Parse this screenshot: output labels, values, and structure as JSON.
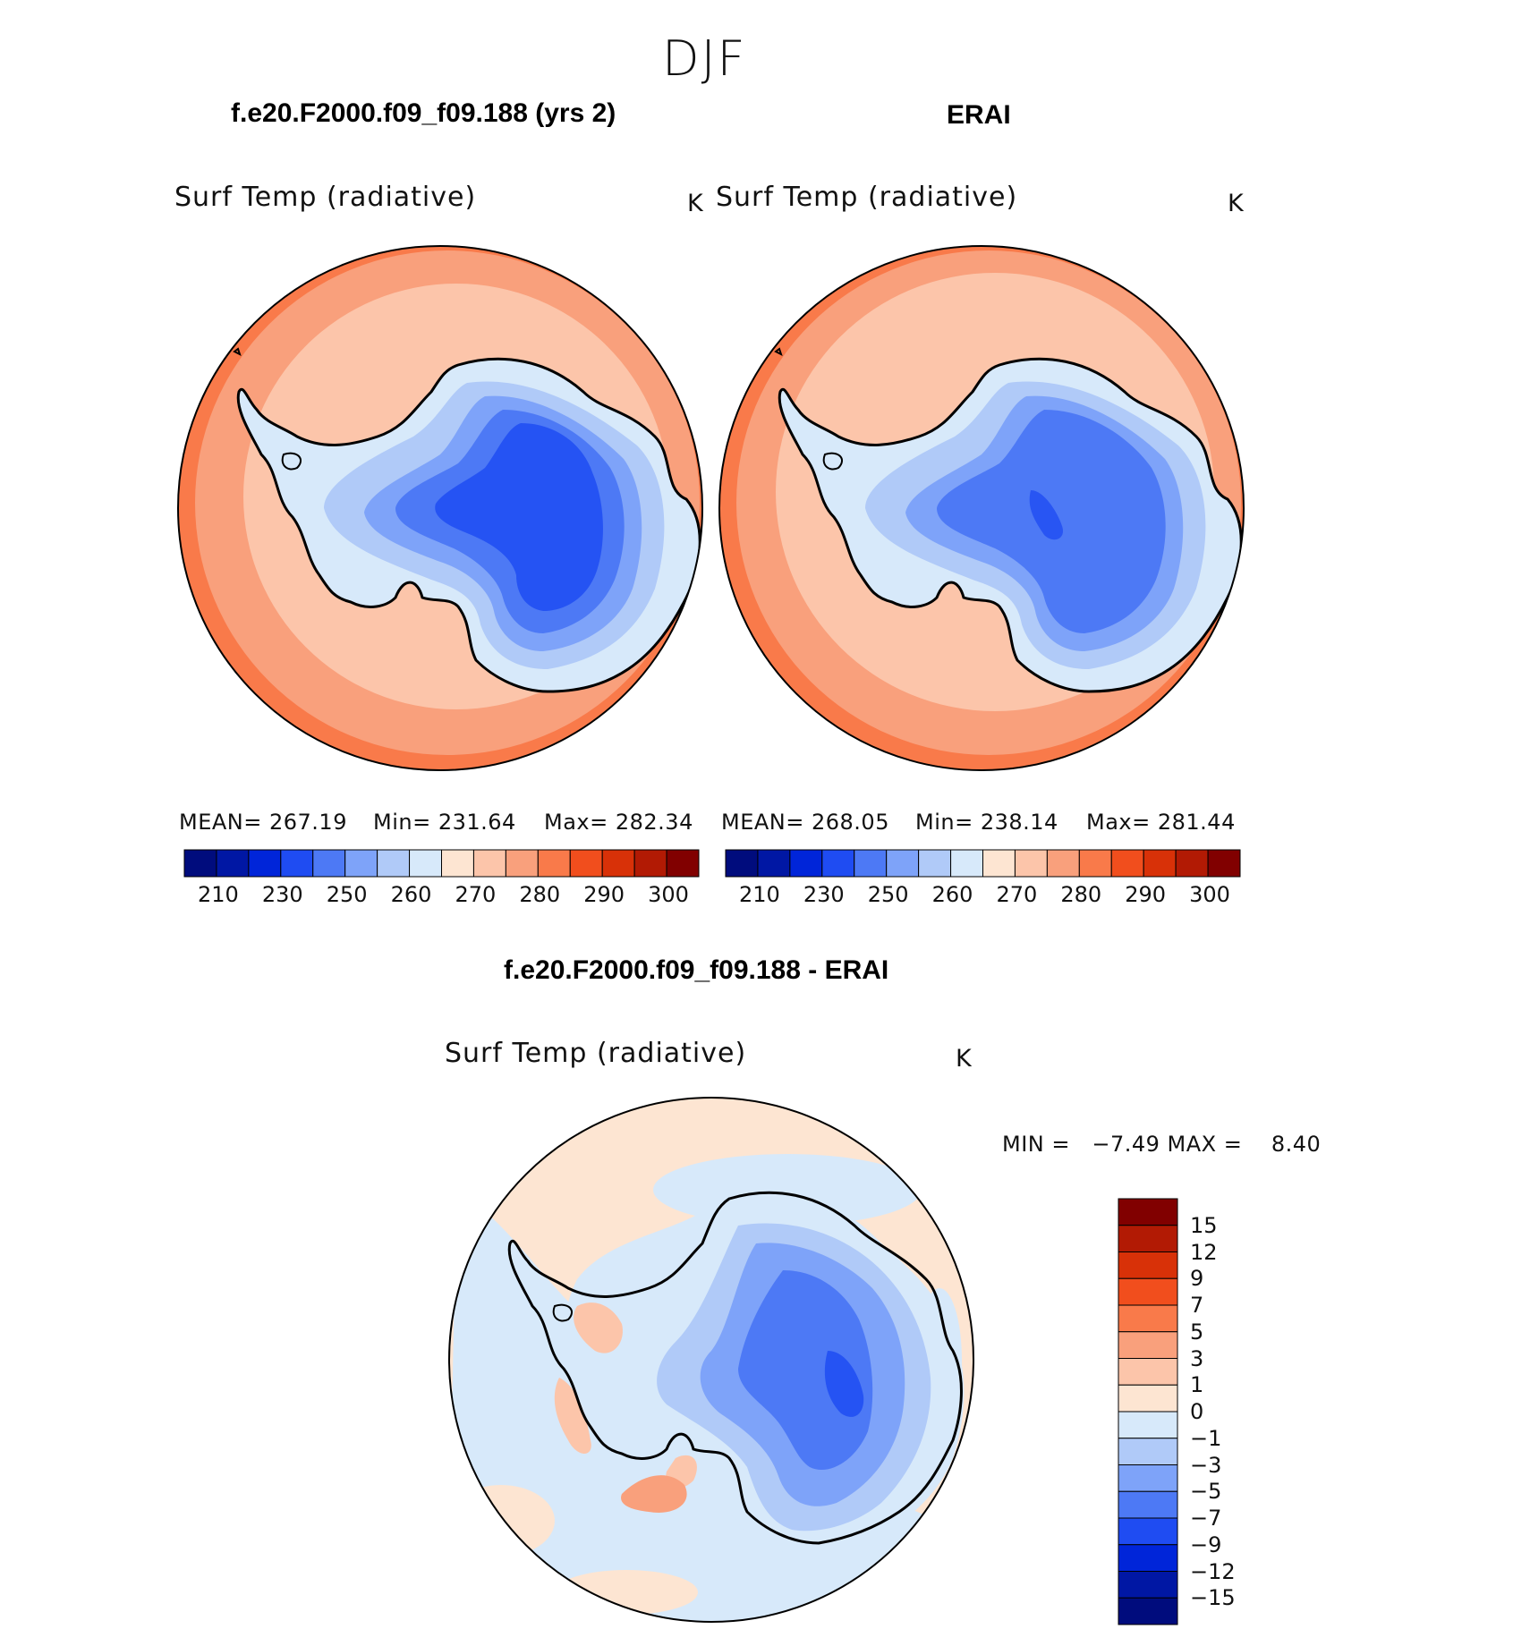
{
  "figure": {
    "season": "DJF",
    "model_title": "f.e20.F2000.f09_f09.188 (yrs 2)",
    "obs_title": "ERAI",
    "diff_title": "f.e20.F2000.f09_f09.188 - ERAI"
  },
  "panels": {
    "model": {
      "variable": "Surf Temp (radiative)",
      "units": "K",
      "mean_text": "MEAN= 267.19",
      "min_text": "Min= 231.64",
      "max_text": "Max= 282.34"
    },
    "obs": {
      "variable": "Surf Temp (radiative)",
      "units": "K",
      "mean_text": "MEAN= 268.05",
      "min_text": "Min= 238.14",
      "max_text": "Max= 281.44"
    },
    "diff": {
      "variable": "Surf Temp (radiative)",
      "units": "K",
      "minmax_text": "MIN =   −7.49 MAX =    8.40"
    }
  },
  "colorbar_abs": {
    "tick_labels": [
      "210",
      "230",
      "250",
      "260",
      "270",
      "280",
      "290",
      "300"
    ],
    "colors": [
      "#000c7d",
      "#0017a4",
      "#0025d9",
      "#1f4cf2",
      "#4d79f5",
      "#7ea3f9",
      "#b0caf8",
      "#d7e9fa",
      "#fde5d2",
      "#fcc5aa",
      "#f9a07c",
      "#f97a4a",
      "#f14e1d",
      "#d83108",
      "#b21a04",
      "#810000"
    ]
  },
  "colorbar_diff": {
    "tick_labels": [
      "15",
      "12",
      "9",
      "7",
      "5",
      "3",
      "1",
      "0",
      "−1",
      "−3",
      "−5",
      "−7",
      "−9",
      "−12",
      "−15"
    ],
    "colors": [
      "#810000",
      "#b21a04",
      "#d83108",
      "#f14e1d",
      "#f97a4a",
      "#f9a07c",
      "#fcc5aa",
      "#fde5d2",
      "#d7e9fa",
      "#b0caf8",
      "#7ea3f9",
      "#4d79f5",
      "#1f4cf2",
      "#0025d9",
      "#0017a4",
      "#000c7d"
    ]
  }
}
